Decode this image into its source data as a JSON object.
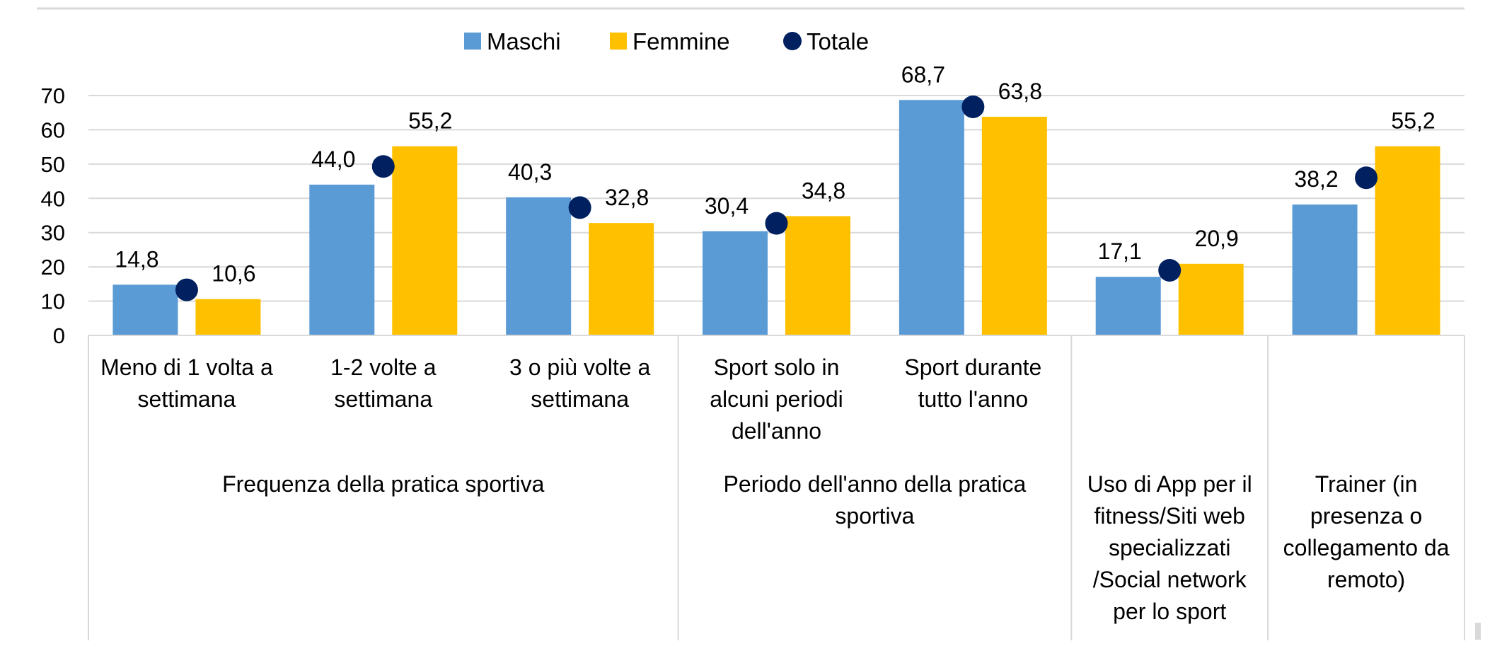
{
  "chart_data": {
    "type": "bar",
    "title": "",
    "xlabel": "",
    "ylabel": "",
    "ylim": [
      0,
      70
    ],
    "yticks": [
      0,
      10,
      20,
      30,
      40,
      50,
      60,
      70
    ],
    "grid": true,
    "legend_position": "top-center",
    "legend": [
      "Maschi",
      "Femmine",
      "Totale"
    ],
    "categories": [
      {
        "label": [
          "Meno di 1 volta a",
          "settimana"
        ]
      },
      {
        "label": [
          "1-2 volte a",
          "settimana"
        ]
      },
      {
        "label": [
          "3 o più volte a",
          "settimana"
        ]
      },
      {
        "label": [
          "Sport solo in",
          "alcuni periodi",
          "dell'anno"
        ]
      },
      {
        "label": [
          "Sport durante",
          "tutto l'anno"
        ]
      },
      {
        "label": []
      },
      {
        "label": []
      }
    ],
    "groups": [
      {
        "label": [
          "Frequenza della pratica sportiva"
        ],
        "categories": [
          0,
          1,
          2
        ]
      },
      {
        "label": [
          "Periodo dell'anno della pratica",
          "sportiva"
        ],
        "categories": [
          3,
          4
        ]
      },
      {
        "label": [
          "Uso di App per il",
          "fitness/Siti web",
          "specializzati",
          "/Social network",
          "per lo sport"
        ],
        "categories": [
          5
        ]
      },
      {
        "label": [
          "Trainer (in",
          "presenza o",
          "collegamento da",
          "remoto)"
        ],
        "categories": [
          6
        ]
      }
    ],
    "series": [
      {
        "name": "Maschi",
        "kind": "bar",
        "color": "#5b9bd5",
        "values": [
          14.8,
          44.0,
          40.3,
          30.4,
          68.7,
          17.1,
          38.2
        ],
        "labels": [
          "14,8",
          "44,0",
          "40,3",
          "30,4",
          "68,7",
          "17,1",
          "38,2"
        ]
      },
      {
        "name": "Femmine",
        "kind": "bar",
        "color": "#ffc000",
        "values": [
          10.6,
          55.2,
          32.8,
          34.8,
          63.8,
          20.9,
          55.2
        ],
        "labels": [
          "10,6",
          "55,2",
          "32,8",
          "34,8",
          "63,8",
          "20,9",
          "55,2"
        ]
      },
      {
        "name": "Totale",
        "kind": "marker",
        "color": "#002060",
        "values": [
          13.3,
          49.3,
          37.3,
          32.7,
          66.7,
          19.0,
          46.0
        ],
        "labels": []
      }
    ]
  }
}
